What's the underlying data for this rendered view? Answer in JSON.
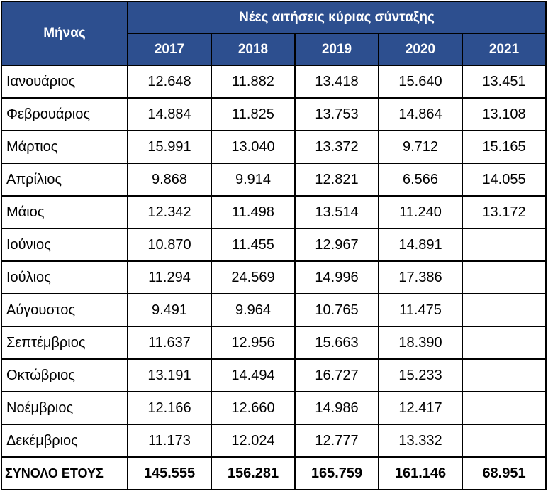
{
  "header": {
    "month_label": "Μήνας",
    "group_label": "Νέες αιτήσεις κύριας σύνταξης",
    "years": [
      "2017",
      "2018",
      "2019",
      "2020",
      "2021"
    ]
  },
  "rows": [
    {
      "month": "Ιανουάριος",
      "values": [
        "12.648",
        "11.882",
        "13.418",
        "15.640",
        "13.451"
      ]
    },
    {
      "month": "Φεβρουάριος",
      "values": [
        "14.884",
        "11.825",
        "13.753",
        "14.864",
        "13.108"
      ]
    },
    {
      "month": "Μάρτιος",
      "values": [
        "15.991",
        "13.040",
        "13.372",
        "9.712",
        "15.165"
      ]
    },
    {
      "month": "Απρίλιος",
      "values": [
        "9.868",
        "9.914",
        "12.821",
        "6.566",
        "14.055"
      ]
    },
    {
      "month": "Μάιος",
      "values": [
        "12.342",
        "11.498",
        "13.514",
        "11.240",
        "13.172"
      ]
    },
    {
      "month": "Ιούνιος",
      "values": [
        "10.870",
        "11.455",
        "12.967",
        "14.891",
        ""
      ]
    },
    {
      "month": "Ιούλιος",
      "values": [
        "11.294",
        "24.569",
        "14.996",
        "17.386",
        ""
      ]
    },
    {
      "month": "Αύγουστος",
      "values": [
        "9.491",
        "9.964",
        "10.765",
        "11.475",
        ""
      ]
    },
    {
      "month": "Σεπτέμβριος",
      "values": [
        "11.637",
        "12.956",
        "15.663",
        "18.390",
        ""
      ]
    },
    {
      "month": "Οκτώβριος",
      "values": [
        "13.191",
        "14.494",
        "16.727",
        "15.233",
        ""
      ]
    },
    {
      "month": "Νοέμβριος",
      "values": [
        "12.166",
        "12.660",
        "14.986",
        "12.417",
        ""
      ]
    },
    {
      "month": "Δεκέμβριος",
      "values": [
        "11.173",
        "12.024",
        "12.777",
        "13.332",
        ""
      ]
    }
  ],
  "total": {
    "label": "ΣΥΝΟΛΟ ΕΤΟΥΣ",
    "values": [
      "145.555",
      "156.281",
      "165.759",
      "161.146",
      "68.951"
    ]
  },
  "colors": {
    "header_bg": "#2d4f8f",
    "header_text": "#ffffff",
    "border": "#000000"
  }
}
